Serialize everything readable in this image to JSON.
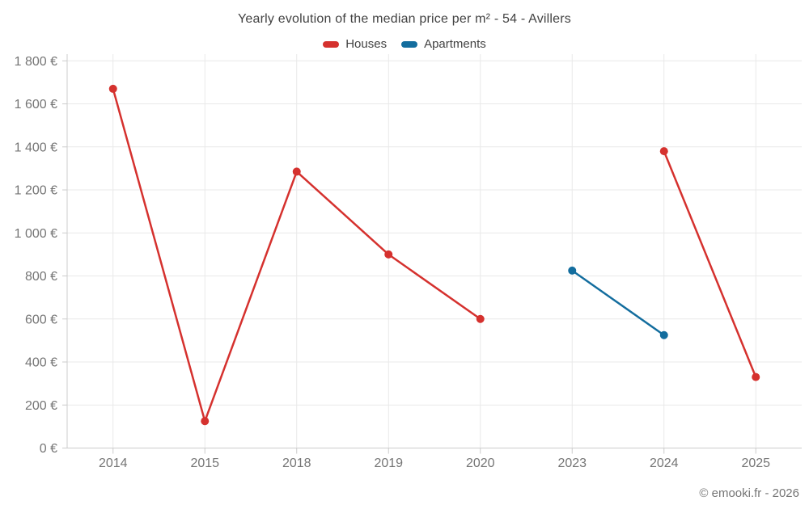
{
  "header": {
    "title": "Yearly evolution of the median price per m² - 54 - Avillers"
  },
  "legend": [
    {
      "label": "Houses",
      "color": "#d5312e"
    },
    {
      "label": "Apartments",
      "color": "#136d9e"
    }
  ],
  "footer": {
    "credit": "© emooki.fr - 2026"
  },
  "chart_data": {
    "type": "line",
    "title": "Yearly evolution of the median price per m² - 54 - Avillers",
    "categories": [
      "2014",
      "2015",
      "2018",
      "2019",
      "2020",
      "2023",
      "2024",
      "2025"
    ],
    "series": [
      {
        "name": "Houses",
        "color": "#d5312e",
        "values": [
          1670,
          125,
          1285,
          900,
          600,
          null,
          1380,
          330
        ]
      },
      {
        "name": "Apartments",
        "color": "#136d9e",
        "values": [
          null,
          null,
          null,
          null,
          null,
          825,
          525,
          null
        ]
      }
    ],
    "xlabel": "",
    "ylabel": "",
    "ytick_format": "{value} €",
    "ylim": [
      0,
      1800
    ],
    "ytick_step": 200,
    "grid": true,
    "legend_position": "top",
    "colors": {
      "grid": "#e9e9e9",
      "axis": "#cccccc",
      "tick_label": "#757575",
      "title": "#424242"
    }
  }
}
